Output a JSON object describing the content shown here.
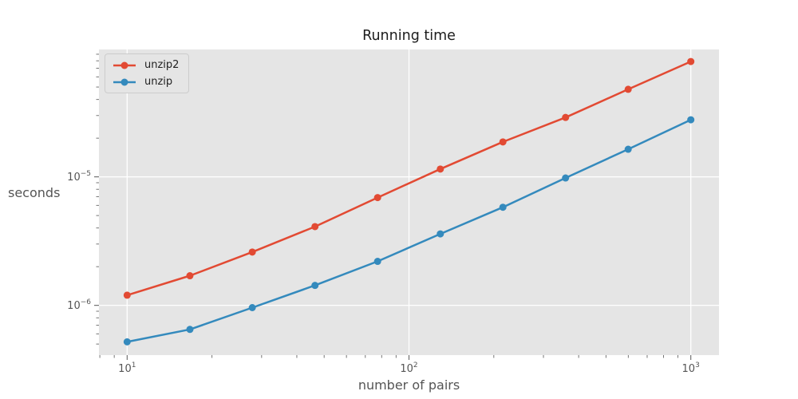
{
  "figure": {
    "title": "Running time",
    "plot_background": "#e5e5e5",
    "grid_color": "#ffffff",
    "tick_color": "#666666",
    "tick_label_color": "#555555",
    "axis_label_color": "#555555",
    "title_color": "#1c1c1c",
    "legend_background": "#e5e5e5",
    "legend_border": "#cccccc"
  },
  "chart_data": {
    "type": "line",
    "title": "Running time",
    "xlabel": "number of pairs",
    "ylabel": "seconds",
    "x_scale": "log",
    "y_scale": "log",
    "grid": true,
    "legend_position": "upper-left",
    "xlim": [
      7.943,
      1258.9
    ],
    "ylim": [
      4.1e-07,
      9.8e-05
    ],
    "x_major_ticks": [
      10,
      100,
      1000
    ],
    "x_major_tick_labels": [
      "10^1",
      "10^2",
      "10^3"
    ],
    "y_major_ticks": [
      1e-06,
      1e-05
    ],
    "y_major_tick_labels": [
      "10^-6",
      "10^-5"
    ],
    "x": [
      10,
      16.7,
      27.8,
      46.4,
      77.4,
      129.2,
      215.4,
      359.4,
      599.5,
      1000
    ],
    "series": [
      {
        "name": "unzip2",
        "color": "#e24a33",
        "values": [
          1.2e-06,
          1.7e-06,
          2.6e-06,
          4.1e-06,
          6.9e-06,
          1.15e-05,
          1.87e-05,
          2.9e-05,
          4.8e-05,
          7.9e-05
        ]
      },
      {
        "name": "unzip",
        "color": "#348abd",
        "values": [
          5.2e-07,
          6.5e-07,
          9.6e-07,
          1.43e-06,
          2.2e-06,
          3.6e-06,
          5.8e-06,
          9.8e-06,
          1.64e-05,
          2.78e-05
        ]
      }
    ]
  }
}
